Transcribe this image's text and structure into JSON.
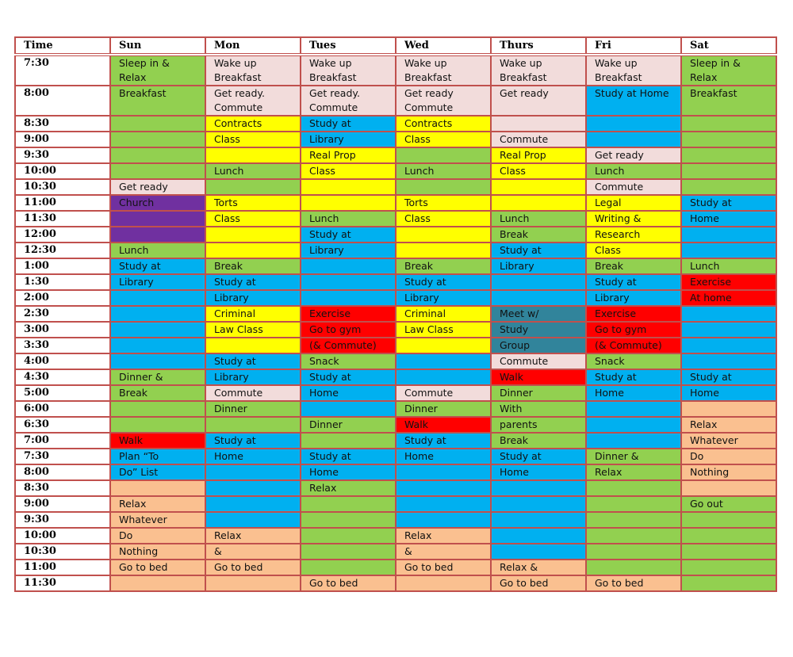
{
  "colors": {
    "pink": "#f2dcdb",
    "green": "#92d050",
    "yellow": "#ffff00",
    "blue": "#00b0f0",
    "purple": "#7030a0",
    "red": "#ff0000",
    "teal": "#31849b",
    "orange": "#fac090",
    "white": "#ffffff",
    "border": "#c0504d"
  },
  "headers": [
    "Time",
    "Sun",
    "Mon",
    "Tues",
    "Wed",
    "Thurs",
    "Fri",
    "Sat"
  ],
  "rows": [
    {
      "time": "7:30",
      "tall": true,
      "cells": [
        [
          "Sleep in & Relax",
          "green"
        ],
        [
          "Wake up\nBreakfast",
          "pink"
        ],
        [
          "Wake up\nBreakfast",
          "pink"
        ],
        [
          "Wake up\nBreakfast",
          "pink"
        ],
        [
          "Wake up\nBreakfast",
          "pink"
        ],
        [
          "Wake up\nBreakfast",
          "pink"
        ],
        [
          "Sleep in & Relax",
          "green"
        ]
      ]
    },
    {
      "time": "8:00",
      "tall": true,
      "cells": [
        [
          "Breakfast",
          "green"
        ],
        [
          "Get ready.\nCommute",
          "pink"
        ],
        [
          "Get ready.\nCommute",
          "pink"
        ],
        [
          "Get ready\nCommute",
          "pink"
        ],
        [
          "Get ready",
          "pink"
        ],
        [
          "Study at Home",
          "blue"
        ],
        [
          "Breakfast",
          "green"
        ]
      ]
    },
    {
      "time": "8:30",
      "cells": [
        [
          "",
          "green"
        ],
        [
          "Contracts",
          "yellow"
        ],
        [
          "Study at",
          "blue"
        ],
        [
          "Contracts",
          "yellow"
        ],
        [
          "",
          "pink"
        ],
        [
          "",
          "blue"
        ],
        [
          "",
          "green"
        ]
      ]
    },
    {
      "time": "9:00",
      "cells": [
        [
          "",
          "green"
        ],
        [
          "Class",
          "yellow"
        ],
        [
          "Library",
          "blue"
        ],
        [
          "Class",
          "yellow"
        ],
        [
          "Commute",
          "pink"
        ],
        [
          "",
          "blue"
        ],
        [
          "",
          "green"
        ]
      ]
    },
    {
      "time": "9:30",
      "cells": [
        [
          "",
          "green"
        ],
        [
          "",
          "yellow"
        ],
        [
          "Real Prop",
          "yellow"
        ],
        [
          "",
          "green"
        ],
        [
          "Real Prop",
          "yellow"
        ],
        [
          "Get ready",
          "pink"
        ],
        [
          "",
          "green"
        ]
      ]
    },
    {
      "time": "10:00",
      "cells": [
        [
          "",
          "green"
        ],
        [
          "Lunch",
          "green"
        ],
        [
          "Class",
          "yellow"
        ],
        [
          "Lunch",
          "green"
        ],
        [
          "Class",
          "yellow"
        ],
        [
          "Lunch",
          "green"
        ],
        [
          "",
          "green"
        ]
      ]
    },
    {
      "time": "10:30",
      "cells": [
        [
          "Get ready",
          "pink"
        ],
        [
          "",
          "green"
        ],
        [
          "",
          "yellow"
        ],
        [
          "",
          "green"
        ],
        [
          "",
          "yellow"
        ],
        [
          "Commute",
          "pink"
        ],
        [
          "",
          "green"
        ]
      ]
    },
    {
      "time": "11:00",
      "cells": [
        [
          "Church",
          "purple"
        ],
        [
          "Torts",
          "yellow"
        ],
        [
          "",
          "yellow"
        ],
        [
          "Torts",
          "yellow"
        ],
        [
          "",
          "yellow"
        ],
        [
          "Legal",
          "yellow"
        ],
        [
          "Study at",
          "blue"
        ]
      ]
    },
    {
      "time": "11:30",
      "cells": [
        [
          "",
          "purple"
        ],
        [
          "Class",
          "yellow"
        ],
        [
          "Lunch",
          "green"
        ],
        [
          "Class",
          "yellow"
        ],
        [
          "Lunch",
          "green"
        ],
        [
          "Writing &",
          "yellow"
        ],
        [
          "Home",
          "blue"
        ]
      ]
    },
    {
      "time": "12:00",
      "cells": [
        [
          "",
          "purple"
        ],
        [
          "",
          "yellow"
        ],
        [
          "Study at",
          "blue"
        ],
        [
          "",
          "yellow"
        ],
        [
          "Break",
          "green"
        ],
        [
          "Research",
          "yellow"
        ],
        [
          "",
          "blue"
        ]
      ]
    },
    {
      "time": "12:30",
      "cells": [
        [
          "Lunch",
          "green"
        ],
        [
          "",
          "yellow"
        ],
        [
          "Library",
          "blue"
        ],
        [
          "",
          "yellow"
        ],
        [
          "Study at",
          "blue"
        ],
        [
          "Class",
          "yellow"
        ],
        [
          "",
          "blue"
        ]
      ]
    },
    {
      "time": "1:00",
      "cells": [
        [
          "Study at",
          "blue"
        ],
        [
          "Break",
          "green"
        ],
        [
          "",
          "blue"
        ],
        [
          "Break",
          "green"
        ],
        [
          "Library",
          "blue"
        ],
        [
          "Break",
          "green"
        ],
        [
          "Lunch",
          "green"
        ]
      ]
    },
    {
      "time": "1:30",
      "cells": [
        [
          "Library",
          "blue"
        ],
        [
          "Study at",
          "blue"
        ],
        [
          "",
          "blue"
        ],
        [
          "Study at",
          "blue"
        ],
        [
          "",
          "blue"
        ],
        [
          "Study at",
          "blue"
        ],
        [
          "Exercise",
          "red"
        ]
      ]
    },
    {
      "time": "2:00",
      "cells": [
        [
          "",
          "blue"
        ],
        [
          "Library",
          "blue"
        ],
        [
          "",
          "blue"
        ],
        [
          "Library",
          "blue"
        ],
        [
          "",
          "blue"
        ],
        [
          "Library",
          "blue"
        ],
        [
          "At home",
          "red"
        ]
      ]
    },
    {
      "time": "2:30",
      "cells": [
        [
          "",
          "blue"
        ],
        [
          "Criminal",
          "yellow"
        ],
        [
          "Exercise",
          "red"
        ],
        [
          "Criminal",
          "yellow"
        ],
        [
          "Meet w/",
          "teal"
        ],
        [
          "Exercise",
          "red"
        ],
        [
          "",
          "blue"
        ]
      ]
    },
    {
      "time": "3:00",
      "cells": [
        [
          "",
          "blue"
        ],
        [
          "Law Class",
          "yellow"
        ],
        [
          "Go to gym",
          "red"
        ],
        [
          "Law Class",
          "yellow"
        ],
        [
          "Study",
          "teal"
        ],
        [
          "Go to gym",
          "red"
        ],
        [
          "",
          "blue"
        ]
      ]
    },
    {
      "time": "3:30",
      "cells": [
        [
          "",
          "blue"
        ],
        [
          "",
          "yellow"
        ],
        [
          "(& Commute)",
          "red"
        ],
        [
          "",
          "yellow"
        ],
        [
          "Group",
          "teal"
        ],
        [
          "(& Commute)",
          "red"
        ],
        [
          "",
          "blue"
        ]
      ]
    },
    {
      "time": "4:00",
      "cells": [
        [
          "",
          "blue"
        ],
        [
          "Study at",
          "blue"
        ],
        [
          "Snack",
          "green"
        ],
        [
          "",
          "blue"
        ],
        [
          "Commute",
          "pink"
        ],
        [
          "Snack",
          "green"
        ],
        [
          "",
          "blue"
        ]
      ]
    },
    {
      "time": "4:30",
      "cells": [
        [
          "Dinner &",
          "green"
        ],
        [
          "Library",
          "blue"
        ],
        [
          "Study at",
          "blue"
        ],
        [
          "",
          "blue"
        ],
        [
          "Walk",
          "red"
        ],
        [
          "Study at",
          "blue"
        ],
        [
          "Study at",
          "blue"
        ]
      ]
    },
    {
      "time": "5:00",
      "cells": [
        [
          "Break",
          "green"
        ],
        [
          "Commute",
          "pink"
        ],
        [
          "Home",
          "blue"
        ],
        [
          "Commute",
          "pink"
        ],
        [
          "Dinner",
          "green"
        ],
        [
          "Home",
          "blue"
        ],
        [
          "Home",
          "blue"
        ]
      ]
    },
    {
      "time": "6:00",
      "cells": [
        [
          "",
          "green"
        ],
        [
          "Dinner",
          "green"
        ],
        [
          "",
          "blue"
        ],
        [
          "Dinner",
          "green"
        ],
        [
          "With",
          "green"
        ],
        [
          "",
          "blue"
        ],
        [
          "",
          "orange"
        ]
      ]
    },
    {
      "time": "6:30",
      "cells": [
        [
          "",
          "green"
        ],
        [
          "",
          "green"
        ],
        [
          "Dinner",
          "green"
        ],
        [
          "Walk",
          "red"
        ],
        [
          "parents",
          "green"
        ],
        [
          "",
          "blue"
        ],
        [
          "Relax",
          "orange"
        ]
      ]
    },
    {
      "time": "7:00",
      "cells": [
        [
          "Walk",
          "red"
        ],
        [
          "Study at",
          "blue"
        ],
        [
          "",
          "green"
        ],
        [
          "Study at",
          "blue"
        ],
        [
          "Break",
          "green"
        ],
        [
          "",
          "blue"
        ],
        [
          "Whatever",
          "orange"
        ]
      ]
    },
    {
      "time": "7:30",
      "cells": [
        [
          "Plan “To",
          "blue"
        ],
        [
          "Home",
          "blue"
        ],
        [
          "Study at",
          "blue"
        ],
        [
          "Home",
          "blue"
        ],
        [
          "Study at",
          "blue"
        ],
        [
          "Dinner &",
          "green"
        ],
        [
          "Do",
          "orange"
        ]
      ]
    },
    {
      "time": "8:00",
      "cells": [
        [
          "Do” List",
          "blue"
        ],
        [
          "",
          "blue"
        ],
        [
          "Home",
          "blue"
        ],
        [
          "",
          "blue"
        ],
        [
          "Home",
          "blue"
        ],
        [
          "Relax",
          "green"
        ],
        [
          "Nothing",
          "orange"
        ]
      ]
    },
    {
      "time": "8:30",
      "cells": [
        [
          "",
          "orange"
        ],
        [
          "",
          "blue"
        ],
        [
          "Relax",
          "green"
        ],
        [
          "",
          "blue"
        ],
        [
          "",
          "blue"
        ],
        [
          "",
          "green"
        ],
        [
          "",
          "orange"
        ]
      ]
    },
    {
      "time": "9:00",
      "cells": [
        [
          "Relax",
          "orange"
        ],
        [
          "",
          "blue"
        ],
        [
          "",
          "green"
        ],
        [
          "",
          "blue"
        ],
        [
          "",
          "blue"
        ],
        [
          "",
          "green"
        ],
        [
          "Go out",
          "green"
        ]
      ]
    },
    {
      "time": "9:30",
      "cells": [
        [
          "Whatever",
          "orange"
        ],
        [
          "",
          "blue"
        ],
        [
          "",
          "green"
        ],
        [
          "",
          "blue"
        ],
        [
          "",
          "blue"
        ],
        [
          "",
          "green"
        ],
        [
          "",
          "green"
        ]
      ]
    },
    {
      "time": "10:00",
      "cells": [
        [
          "Do",
          "orange"
        ],
        [
          "Relax",
          "orange"
        ],
        [
          "",
          "green"
        ],
        [
          "Relax",
          "orange"
        ],
        [
          "",
          "blue"
        ],
        [
          "",
          "green"
        ],
        [
          "",
          "green"
        ]
      ]
    },
    {
      "time": "10:30",
      "cells": [
        [
          "Nothing",
          "orange"
        ],
        [
          "&",
          "orange"
        ],
        [
          "",
          "green"
        ],
        [
          "&",
          "orange"
        ],
        [
          "",
          "blue"
        ],
        [
          "",
          "green"
        ],
        [
          "",
          "green"
        ]
      ]
    },
    {
      "time": "11:00",
      "cells": [
        [
          "Go to bed",
          "orange"
        ],
        [
          "Go to bed",
          "orange"
        ],
        [
          "",
          "green"
        ],
        [
          "Go to bed",
          "orange"
        ],
        [
          "Relax &",
          "orange"
        ],
        [
          "",
          "green"
        ],
        [
          "",
          "green"
        ]
      ]
    },
    {
      "time": "11:30",
      "cells": [
        [
          "",
          "orange"
        ],
        [
          "",
          "orange"
        ],
        [
          "Go to bed",
          "orange"
        ],
        [
          "",
          "orange"
        ],
        [
          "Go to bed",
          "orange"
        ],
        [
          "Go to bed",
          "orange"
        ],
        [
          "",
          "green"
        ]
      ]
    }
  ]
}
